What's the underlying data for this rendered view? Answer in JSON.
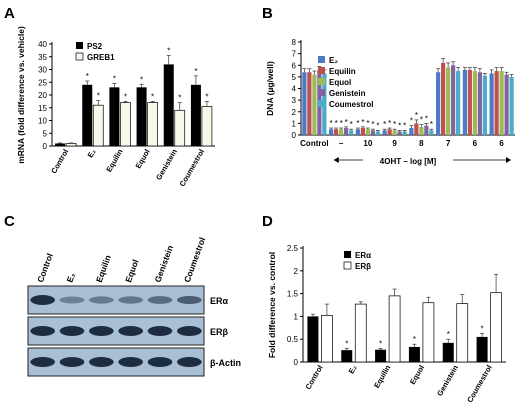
{
  "panel_letters": [
    "A",
    "B",
    "C",
    "D"
  ],
  "chart_data": [
    {
      "id": "A",
      "type": "bar",
      "ylabel": "mRNA (fold difference vs. vehicle)",
      "ylim": [
        0,
        40
      ],
      "yticks": [
        "0",
        "5",
        "10",
        "15",
        "20",
        "25",
        "30",
        "35",
        "40"
      ],
      "categories": [
        "Control",
        "E₂",
        "Equilin",
        "Equol",
        "Genistein",
        "Coumestrol"
      ],
      "series": [
        {
          "name": "PS2",
          "color": "#000000",
          "values": [
            1,
            24,
            23,
            23,
            32,
            24
          ],
          "errors": [
            0.2,
            1.5,
            1.5,
            1.2,
            3.5,
            3.5
          ]
        },
        {
          "name": "GREB1",
          "color": "#f8f8e8",
          "values": [
            1,
            16,
            17,
            17,
            14,
            15.5
          ],
          "errors": [
            0.2,
            1.8,
            0.5,
            0.5,
            3.0,
            2.0
          ]
        }
      ],
      "significance": [
        [
          false,
          false
        ],
        [
          true,
          true
        ],
        [
          true,
          true
        ],
        [
          true,
          true
        ],
        [
          true,
          true
        ],
        [
          true,
          true
        ]
      ],
      "significance_mark": "*",
      "legend": "top-left"
    },
    {
      "id": "B",
      "type": "bar",
      "ylabel": "DNA (µg/well)",
      "xlabel": "4OHT – log [M]",
      "ylim": [
        0,
        8
      ],
      "yticks": [
        "0",
        "1",
        "2",
        "3",
        "4",
        "5",
        "6",
        "7",
        "8"
      ],
      "categories": [
        "Control",
        "–",
        "10",
        "9",
        "8",
        "7",
        "6",
        "6"
      ],
      "series": [
        {
          "name": "E₂",
          "color": "#4a7bc4",
          "values": [
            5.4,
            0.5,
            0.5,
            0.4,
            0.6,
            5.4,
            5.6,
            5.3
          ],
          "errors": [
            0.3,
            0.1,
            0.1,
            0.1,
            0.2,
            0.3,
            0.2,
            0.3
          ]
        },
        {
          "name": "Equilin",
          "color": "#c0504d",
          "values": [
            5.4,
            0.5,
            0.6,
            0.5,
            1.0,
            6.2,
            5.6,
            5.5
          ],
          "errors": [
            0.3,
            0.1,
            0.1,
            0.1,
            0.3,
            0.4,
            0.2,
            0.3
          ]
        },
        {
          "name": "Equol",
          "color": "#9bbb59",
          "values": [
            5.2,
            0.5,
            0.5,
            0.4,
            0.7,
            5.8,
            5.5,
            5.5
          ],
          "errors": [
            0.3,
            0.1,
            0.1,
            0.1,
            0.2,
            0.4,
            0.3,
            0.3
          ]
        },
        {
          "name": "Genistein",
          "color": "#8064a2",
          "values": [
            5.6,
            0.6,
            0.4,
            0.3,
            0.8,
            6.0,
            5.4,
            5.2
          ],
          "errors": [
            0.3,
            0.1,
            0.1,
            0.1,
            0.2,
            0.3,
            0.3,
            0.2
          ]
        },
        {
          "name": "Coumestrol",
          "color": "#4bacc6",
          "values": [
            5.3,
            0.4,
            0.3,
            0.3,
            0.4,
            5.5,
            5.1,
            5.0
          ],
          "errors": [
            0.3,
            0.1,
            0.1,
            0.1,
            0.1,
            0.3,
            0.2,
            0.2
          ]
        }
      ],
      "significance": [
        [
          false,
          false,
          false,
          false,
          false
        ],
        [
          true,
          true,
          true,
          true,
          true
        ],
        [
          true,
          true,
          true,
          true,
          true
        ],
        [
          true,
          true,
          true,
          true,
          true
        ],
        [
          true,
          true,
          true,
          true,
          true
        ],
        [
          false,
          false,
          false,
          false,
          false
        ],
        [
          false,
          false,
          false,
          false,
          false
        ],
        [
          false,
          false,
          false,
          false,
          false
        ]
      ],
      "significance_mark": "*",
      "legend": "top-left"
    },
    {
      "id": "D",
      "type": "bar",
      "ylabel": "Fold difference vs. control",
      "ylim": [
        0,
        2.5
      ],
      "yticks": [
        "0",
        "0.5",
        "1",
        "1.5",
        "2",
        "2.5"
      ],
      "categories": [
        "Control",
        "E₂",
        "Equilin",
        "Equol",
        "Genistein",
        "Coumestrol"
      ],
      "series": [
        {
          "name": "ERα",
          "color": "#000000",
          "values": [
            1.0,
            0.26,
            0.27,
            0.33,
            0.42,
            0.55
          ],
          "errors": [
            0.05,
            0.04,
            0.03,
            0.06,
            0.08,
            0.08
          ]
        },
        {
          "name": "ERβ",
          "color": "#ffffff",
          "values": [
            1.02,
            1.27,
            1.45,
            1.3,
            1.28,
            1.52
          ],
          "errors": [
            0.25,
            0.05,
            0.15,
            0.12,
            0.2,
            0.4
          ]
        }
      ],
      "significance": [
        [
          false,
          false
        ],
        [
          true,
          false
        ],
        [
          true,
          false
        ],
        [
          true,
          false
        ],
        [
          true,
          false
        ],
        [
          true,
          false
        ]
      ],
      "significance_mark": "*",
      "legend": "top-left"
    }
  ],
  "blot": {
    "lane_labels": [
      "Control",
      "E₂",
      "Equilin",
      "Equol",
      "Genistein",
      "Coumestrol"
    ],
    "bands": [
      {
        "label": "ERα",
        "intensity": [
          1.0,
          0.25,
          0.3,
          0.35,
          0.45,
          0.55
        ]
      },
      {
        "label": "ERβ",
        "intensity": [
          1.0,
          1.0,
          1.0,
          1.0,
          1.0,
          1.0
        ]
      },
      {
        "label": "β-Actin",
        "intensity": [
          1.0,
          1.0,
          1.0,
          1.0,
          1.0,
          1.0
        ]
      }
    ]
  }
}
